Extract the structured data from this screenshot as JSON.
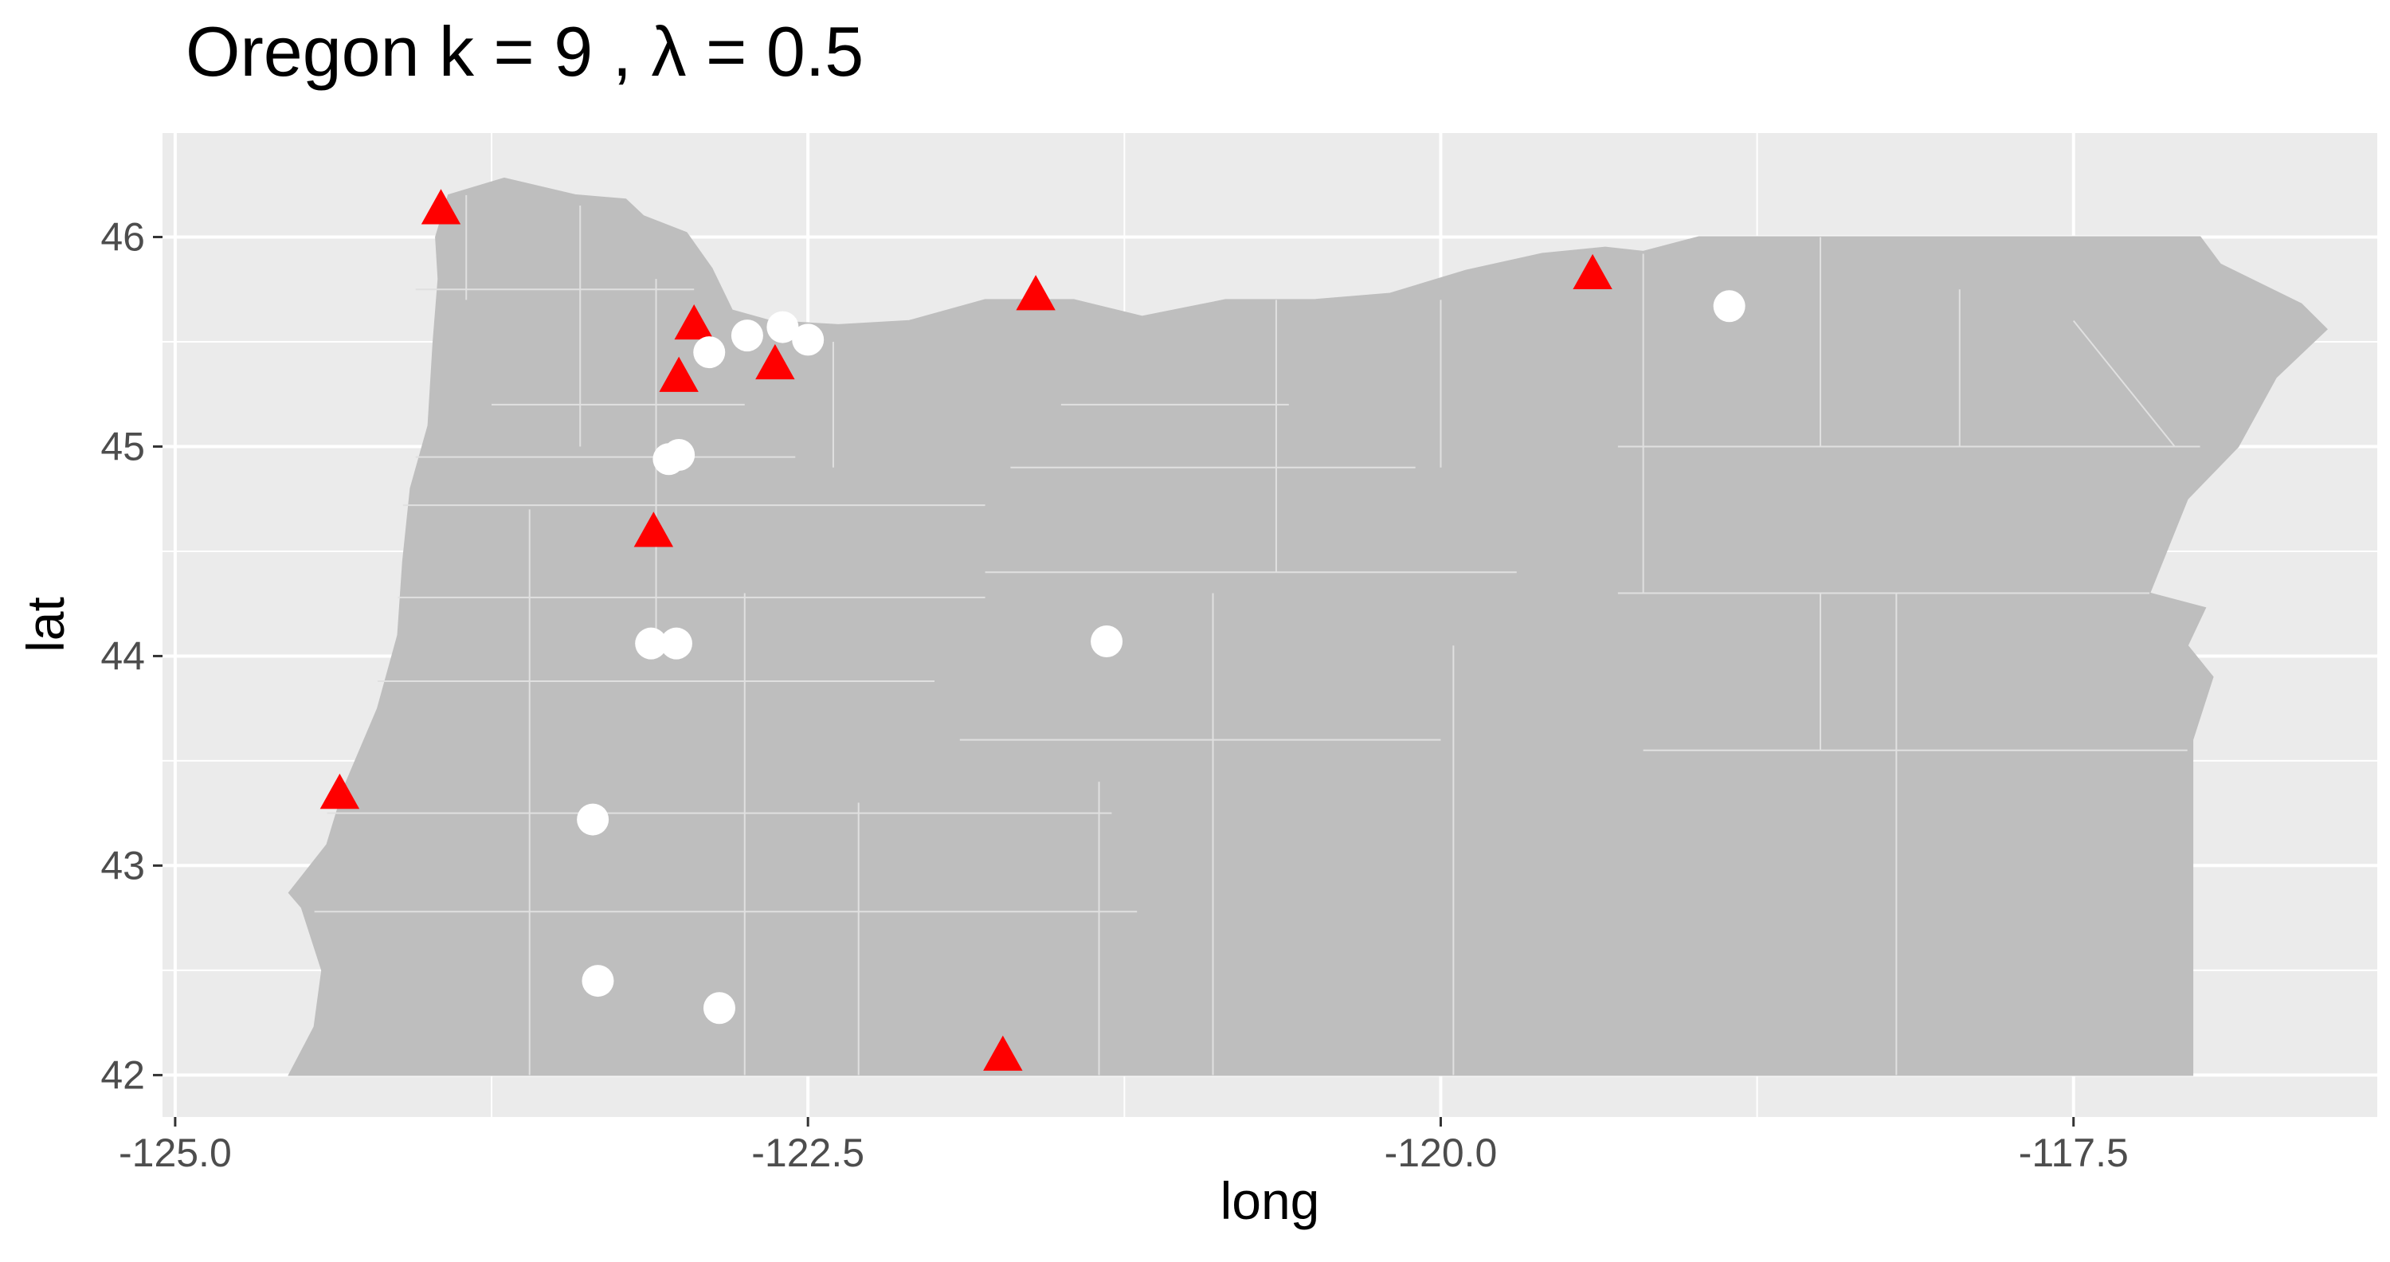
{
  "title": "Oregon  k =  9 ,  λ  =  0.5",
  "chart_data": {
    "type": "scatter",
    "title": "Oregon  k =  9 ,  λ  =  0.5",
    "xlabel": "long",
    "ylabel": "lat",
    "xlim": [
      -125.05,
      -116.3
    ],
    "ylim": [
      41.8,
      46.5
    ],
    "x_ticks": [
      -125.0,
      -122.5,
      -120.0,
      -117.5
    ],
    "x_tick_labels": [
      "-125.0",
      "-122.5",
      "-120.0",
      "-117.5"
    ],
    "y_ticks": [
      42,
      43,
      44,
      45,
      46
    ],
    "y_tick_labels": [
      "42",
      "43",
      "44",
      "45",
      "46"
    ],
    "grid": true,
    "background": "#ebebeb",
    "map_fill": "#bebebe",
    "series": [
      {
        "marker": "triangle",
        "color": "#ff0000",
        "points": [
          {
            "x": -123.95,
            "y": 46.13
          },
          {
            "x": -122.95,
            "y": 45.58
          },
          {
            "x": -123.01,
            "y": 45.33
          },
          {
            "x": -122.63,
            "y": 45.39
          },
          {
            "x": -123.11,
            "y": 44.59
          },
          {
            "x": -121.6,
            "y": 45.72
          },
          {
            "x": -119.4,
            "y": 45.82
          },
          {
            "x": -124.35,
            "y": 43.34
          },
          {
            "x": -121.73,
            "y": 42.09
          }
        ]
      },
      {
        "marker": "circle",
        "color": "#ffffff",
        "points": [
          {
            "x": -122.89,
            "y": 45.45
          },
          {
            "x": -122.74,
            "y": 45.53
          },
          {
            "x": -122.6,
            "y": 45.57
          },
          {
            "x": -122.5,
            "y": 45.51
          },
          {
            "x": -123.05,
            "y": 44.94
          },
          {
            "x": -123.01,
            "y": 44.96
          },
          {
            "x": -123.12,
            "y": 44.06
          },
          {
            "x": -123.02,
            "y": 44.06
          },
          {
            "x": -121.32,
            "y": 44.07
          },
          {
            "x": -118.86,
            "y": 45.67
          },
          {
            "x": -123.35,
            "y": 43.22
          },
          {
            "x": -123.33,
            "y": 42.45
          },
          {
            "x": -122.85,
            "y": 42.32
          }
        ]
      }
    ]
  }
}
